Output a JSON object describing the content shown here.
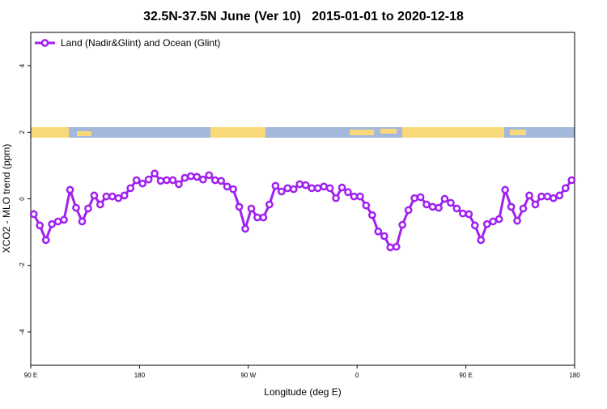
{
  "chart_data": {
    "type": "line",
    "title": "32.5N-37.5N June (Ver 10)   2015-01-01 to 2020-12-18",
    "xlabel": "Longitude (deg E)",
    "ylabel": "XCO2 - MLO trend (ppm)",
    "x": [
      92.5,
      97.5,
      102.5,
      107.5,
      112.5,
      117.5,
      122.5,
      127.5,
      132.5,
      137.5,
      142.5,
      147.5,
      152.5,
      157.5,
      162.5,
      167.5,
      172.5,
      177.5,
      182.5,
      187.5,
      192.5,
      197.5,
      202.5,
      207.5,
      212.5,
      217.5,
      222.5,
      227.5,
      232.5,
      237.5,
      242.5,
      247.5,
      252.5,
      257.5,
      262.5,
      267.5,
      272.5,
      277.5,
      282.5,
      287.5,
      292.5,
      297.5,
      302.5,
      307.5,
      312.5,
      317.5,
      322.5,
      327.5,
      332.5,
      337.5,
      342.5,
      347.5,
      352.5,
      357.5,
      362.5,
      367.5,
      372.5,
      377.5,
      382.5,
      387.5,
      392.5,
      397.5,
      402.5,
      407.5,
      412.5,
      417.5,
      422.5,
      427.5,
      432.5,
      437.5,
      442.5,
      447.5,
      452.5,
      457.5,
      462.5,
      467.5,
      472.5,
      477.5,
      482.5,
      487.5,
      492.5,
      497.5,
      502.5,
      507.5,
      512.5,
      517.5,
      522.5,
      527.5,
      532.5,
      537.5
    ],
    "series": [
      {
        "name": "Land (Nadir&Glint) and Ocean (Glint)",
        "color": "#a020f0",
        "values": [
          -0.46,
          -0.8,
          -1.24,
          -0.76,
          -0.68,
          -0.63,
          0.27,
          -0.27,
          -0.68,
          -0.29,
          0.1,
          -0.17,
          0.07,
          0.07,
          0.02,
          0.1,
          0.32,
          0.56,
          0.46,
          0.58,
          0.76,
          0.54,
          0.56,
          0.56,
          0.44,
          0.63,
          0.68,
          0.66,
          0.58,
          0.71,
          0.56,
          0.54,
          0.37,
          0.29,
          -0.24,
          -0.9,
          -0.29,
          -0.56,
          -0.56,
          -0.17,
          0.39,
          0.22,
          0.32,
          0.29,
          0.44,
          0.41,
          0.32,
          0.32,
          0.37,
          0.32,
          0.02,
          0.34,
          0.2,
          0.07,
          0.07,
          -0.2,
          -0.49,
          -0.98,
          -1.12,
          -1.46,
          -1.44,
          -0.78,
          -0.34,
          0.02,
          0.05,
          -0.17,
          -0.24,
          -0.27,
          0,
          -0.12,
          -0.29,
          -0.44,
          -0.46,
          -0.8,
          -1.24,
          -0.76,
          -0.68,
          -0.61,
          0.27,
          -0.24,
          -0.66,
          -0.29,
          0.1,
          -0.17,
          0.07,
          0.07,
          0.02,
          0.1,
          0.32,
          0.56
        ]
      }
    ],
    "xlim": [
      90,
      540
    ],
    "xticks": [
      {
        "value": 90,
        "label": "90 E"
      },
      {
        "value": 180,
        "label": "180"
      },
      {
        "value": 270,
        "label": "90 W"
      },
      {
        "value": 360,
        "label": "0"
      },
      {
        "value": 450,
        "label": "90 E"
      },
      {
        "value": 540,
        "label": "180"
      }
    ],
    "ylim": [
      -5,
      5
    ],
    "yticks": [
      -4,
      -2,
      0,
      2,
      4
    ],
    "grid": false,
    "legend": "upper-left"
  }
}
